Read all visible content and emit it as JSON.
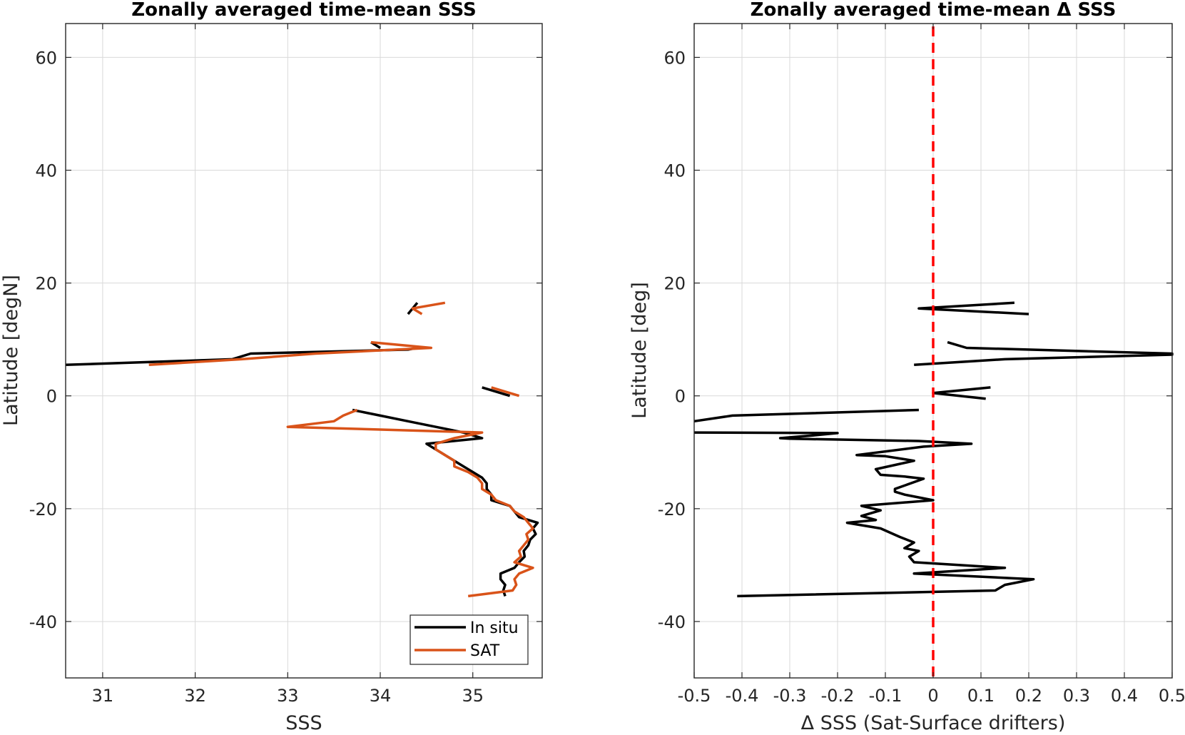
{
  "chart_data": [
    {
      "type": "line",
      "title": "Zonally averaged time-mean SSS",
      "xlabel": "SSS",
      "ylabel": "Latitude [degN]",
      "xlim": [
        30.6,
        35.75
      ],
      "ylim": [
        -50,
        66
      ],
      "xticks": [
        31,
        32,
        33,
        34,
        35
      ],
      "yticks": [
        -40,
        -20,
        0,
        20,
        40,
        60
      ],
      "grid": true,
      "legend": "bottom-right",
      "colors": {
        "insitu": "#000000",
        "sat": "#D95319"
      },
      "series": [
        {
          "name": "In situ",
          "color": "#000000",
          "segments": [
            [
              [
                34.3,
                14.5
              ],
              [
                34.4,
                16.5
              ]
            ],
            [
              [
                34.0,
                8.5
              ],
              [
                33.9,
                9.5
              ]
            ],
            [
              [
                30.6,
                5.5
              ],
              [
                32.4,
                6.5
              ],
              [
                32.6,
                7.5
              ],
              [
                34.3,
                8.2
              ],
              [
                34.4,
                8.5
              ]
            ],
            [
              [
                35.1,
                1.5
              ],
              [
                35.4,
                0
              ]
            ],
            [
              [
                33.7,
                -2.5
              ],
              [
                34.0,
                -3.5
              ],
              [
                34.3,
                -4.5
              ],
              [
                34.6,
                -5.5
              ],
              [
                34.9,
                -6.5
              ],
              [
                35.1,
                -7.5
              ],
              [
                34.5,
                -8.5
              ],
              [
                34.6,
                -9.5
              ],
              [
                34.7,
                -10.5
              ],
              [
                34.8,
                -11.5
              ],
              [
                34.9,
                -12.5
              ],
              [
                35.0,
                -13.5
              ],
              [
                35.1,
                -14.5
              ],
              [
                35.15,
                -15.5
              ],
              [
                35.15,
                -16.5
              ],
              [
                35.2,
                -17.5
              ],
              [
                35.2,
                -18.5
              ],
              [
                35.4,
                -19.5
              ],
              [
                35.45,
                -20.5
              ],
              [
                35.5,
                -21.5
              ],
              [
                35.7,
                -22.5
              ],
              [
                35.65,
                -23.5
              ],
              [
                35.68,
                -24.5
              ],
              [
                35.62,
                -25.5
              ],
              [
                35.6,
                -26.5
              ],
              [
                35.55,
                -27.5
              ],
              [
                35.56,
                -28.5
              ],
              [
                35.5,
                -29.5
              ],
              [
                35.45,
                -30.5
              ],
              [
                35.3,
                -31.5
              ],
              [
                35.3,
                -32.5
              ],
              [
                35.35,
                -33.5
              ],
              [
                35.33,
                -34.5
              ],
              [
                35.35,
                -35.5
              ]
            ]
          ]
        },
        {
          "name": "SAT",
          "color": "#D95319",
          "segments": [
            [
              [
                34.7,
                16.5
              ],
              [
                34.35,
                15.5
              ],
              [
                34.45,
                14.5
              ]
            ],
            [
              [
                33.9,
                9.5
              ],
              [
                34.55,
                8.5
              ],
              [
                33.3,
                7.5
              ],
              [
                32.5,
                6.5
              ],
              [
                31.5,
                5.5
              ]
            ],
            [
              [
                35.2,
                1.5
              ],
              [
                35.5,
                0
              ]
            ],
            [
              [
                33.75,
                -2.5
              ],
              [
                33.6,
                -3.5
              ],
              [
                33.5,
                -4.5
              ],
              [
                33.0,
                -5.5
              ],
              [
                35.1,
                -6.5
              ],
              [
                34.8,
                -7.5
              ],
              [
                34.6,
                -8.5
              ],
              [
                34.6,
                -9.5
              ],
              [
                34.7,
                -10.5
              ],
              [
                34.8,
                -11.5
              ],
              [
                34.8,
                -12.5
              ],
              [
                34.95,
                -13.5
              ],
              [
                35.05,
                -14.5
              ],
              [
                35.1,
                -15.5
              ],
              [
                35.1,
                -16.5
              ],
              [
                35.2,
                -17.5
              ],
              [
                35.25,
                -18.5
              ],
              [
                35.4,
                -19.5
              ],
              [
                35.45,
                -20.5
              ],
              [
                35.55,
                -21.5
              ],
              [
                35.6,
                -22.5
              ],
              [
                35.65,
                -23.5
              ],
              [
                35.58,
                -24.5
              ],
              [
                35.6,
                -25.5
              ],
              [
                35.55,
                -26.5
              ],
              [
                35.5,
                -27.5
              ],
              [
                35.52,
                -28.5
              ],
              [
                35.45,
                -29.5
              ],
              [
                35.65,
                -30.5
              ],
              [
                35.5,
                -31.5
              ],
              [
                35.45,
                -32.5
              ],
              [
                35.47,
                -33.5
              ],
              [
                35.43,
                -34.5
              ],
              [
                34.95,
                -35.5
              ]
            ]
          ]
        }
      ]
    },
    {
      "type": "line",
      "title": "Zonally averaged time-mean Δ SSS",
      "xlabel": "Δ SSS (Sat-Surface drifters)",
      "ylabel": "Latitude [deg]",
      "xlim": [
        -0.5,
        0.5
      ],
      "ylim": [
        -50,
        66
      ],
      "xticks": [
        -0.5,
        -0.4,
        -0.3,
        -0.2,
        -0.1,
        0,
        0.1,
        0.2,
        0.3,
        0.4,
        0.5
      ],
      "xtick_labels": [
        "-0.5",
        "-0.4",
        "-0.3",
        "-0.2",
        "-0.1",
        "0",
        "0.1",
        "0.2",
        "0.3",
        "0.4",
        "0.5"
      ],
      "yticks": [
        -40,
        -20,
        0,
        20,
        40,
        60
      ],
      "grid": true,
      "reference_line": {
        "x": 0,
        "color": "#FF0000",
        "style": "dashed"
      },
      "series": [
        {
          "color": "#000000",
          "segments": [
            [
              [
                0.2,
                14.5
              ],
              [
                -0.03,
                15.5
              ],
              [
                0.17,
                16.5
              ]
            ],
            [
              [
                0.03,
                9.5
              ],
              [
                0.07,
                8.5
              ],
              [
                0.5,
                7.5
              ],
              [
                0.5,
                7.3
              ],
              [
                0.15,
                6.5
              ],
              [
                -0.04,
                5.5
              ]
            ],
            [
              [
                0.12,
                1.5
              ],
              [
                0.0,
                0.5
              ],
              [
                0.11,
                -0.5
              ]
            ],
            [
              [
                -0.03,
                -2.5
              ],
              [
                -0.42,
                -3.5
              ],
              [
                -0.5,
                -4.5
              ]
            ],
            [
              [
                -0.5,
                -6.5
              ],
              [
                -0.2,
                -6.6
              ],
              [
                -0.25,
                -7.0
              ],
              [
                -0.32,
                -7.5
              ],
              [
                -0.3,
                -7.6
              ],
              [
                -0.03,
                -8.0
              ],
              [
                0.08,
                -8.5
              ],
              [
                -0.02,
                -9.0
              ],
              [
                -0.16,
                -10.5
              ],
              [
                -0.1,
                -10.7
              ],
              [
                -0.04,
                -11.5
              ],
              [
                -0.12,
                -13.0
              ],
              [
                -0.11,
                -14.0
              ],
              [
                -0.06,
                -14.3
              ],
              [
                -0.02,
                -14.7
              ],
              [
                -0.08,
                -16.5
              ],
              [
                -0.08,
                -17.0
              ],
              [
                -0.06,
                -17.5
              ],
              [
                0.0,
                -18.5
              ],
              [
                -0.15,
                -19.5
              ],
              [
                -0.11,
                -20.3
              ],
              [
                -0.15,
                -21.3
              ],
              [
                -0.12,
                -22.0
              ],
              [
                -0.18,
                -22.5
              ],
              [
                -0.11,
                -23.5
              ],
              [
                -0.07,
                -25.0
              ],
              [
                -0.04,
                -26.0
              ],
              [
                -0.06,
                -27.0
              ],
              [
                -0.03,
                -27.5
              ],
              [
                -0.05,
                -28.5
              ],
              [
                -0.04,
                -29.5
              ],
              [
                0.15,
                -30.5
              ],
              [
                -0.04,
                -31.5
              ],
              [
                0.21,
                -32.5
              ],
              [
                0.15,
                -33.5
              ],
              [
                0.13,
                -34.5
              ],
              [
                -0.41,
                -35.5
              ]
            ]
          ]
        }
      ]
    }
  ]
}
